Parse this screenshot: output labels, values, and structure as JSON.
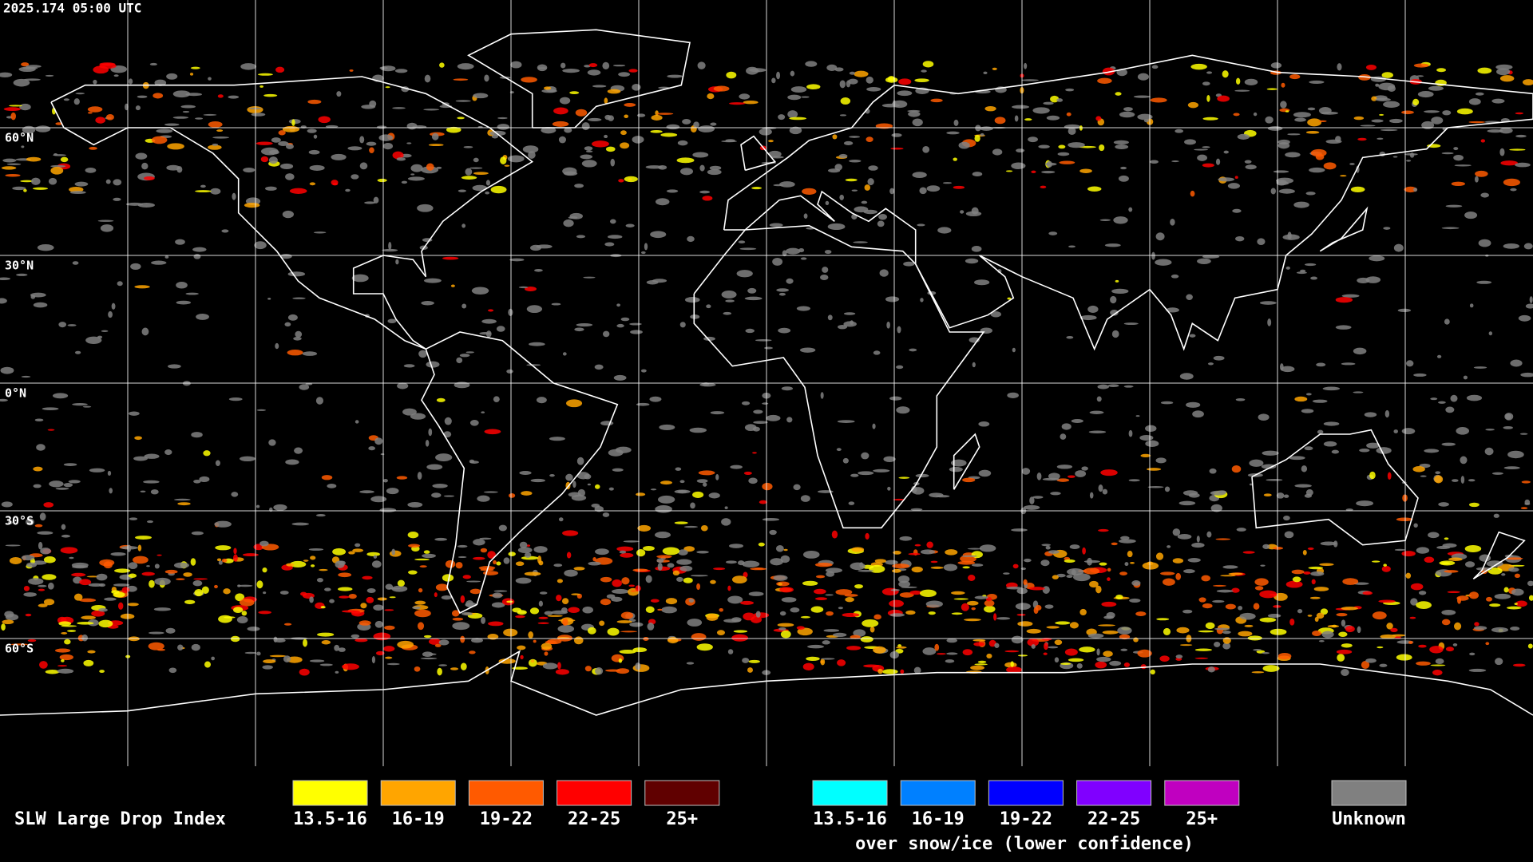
{
  "header": {
    "timestamp": "2025.174 05:00 UTC"
  },
  "latitude_labels": [
    "60°N",
    "30°N",
    "0°N",
    "30°S",
    "60°S"
  ],
  "legend": {
    "title": "SLW Large Drop Index",
    "groups": [
      {
        "items": [
          {
            "label": "13.5-16",
            "color": "#ffff00"
          },
          {
            "label": "16-19",
            "color": "#ffa500"
          },
          {
            "label": "19-22",
            "color": "#ff5a00"
          },
          {
            "label": "22-25",
            "color": "#ff0000"
          },
          {
            "label": "25+",
            "color": "#600000"
          }
        ]
      },
      {
        "items": [
          {
            "label": "13.5-16",
            "color": "#00ffff"
          },
          {
            "label": "16-19",
            "color": "#0080ff"
          },
          {
            "label": "19-22",
            "color": "#0000ff"
          },
          {
            "label": "22-25",
            "color": "#8000ff"
          },
          {
            "label": "25+",
            "color": "#c000c0"
          }
        ],
        "caption": "over snow/ice (lower confidence)"
      }
    ],
    "unknown": {
      "label": "Unknown",
      "color": "#808080"
    }
  }
}
